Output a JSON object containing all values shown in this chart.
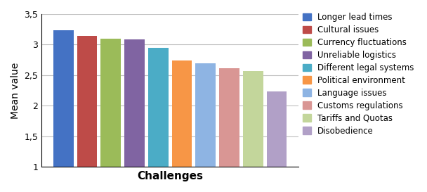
{
  "xlabel": "Challenges",
  "ylabel": "Mean value",
  "ylim": [
    1,
    3.5
  ],
  "yticks": [
    1,
    1.5,
    2,
    2.5,
    3,
    3.5
  ],
  "ytick_labels": [
    "1",
    "1,5",
    "2",
    "2,5",
    "3",
    "3,5"
  ],
  "bars": [
    {
      "label": "Longer lead times",
      "value": 3.24,
      "color": "#4472C4"
    },
    {
      "label": "Cultural issues",
      "value": 3.14,
      "color": "#BE4B48"
    },
    {
      "label": "Currency fluctuations",
      "value": 3.1,
      "color": "#9BBB59"
    },
    {
      "label": "Unreliable logistics",
      "value": 3.09,
      "color": "#8064A2"
    },
    {
      "label": "Different legal systems",
      "value": 2.95,
      "color": "#4BACC6"
    },
    {
      "label": "Political environment",
      "value": 2.74,
      "color": "#F79646"
    },
    {
      "label": "Language issues",
      "value": 2.69,
      "color": "#8EB4E3"
    },
    {
      "label": "Customs regulations",
      "value": 2.62,
      "color": "#D99694"
    },
    {
      "label": "Tariffs and Quotas",
      "value": 2.57,
      "color": "#C3D69B"
    },
    {
      "label": "Disobedience",
      "value": 2.23,
      "color": "#B1A0C7"
    }
  ],
  "background_color": "#FFFFFF",
  "grid_color": "#C0C0C0",
  "bar_width": 0.85,
  "figsize": [
    6.08,
    2.73
  ],
  "dpi": 100
}
